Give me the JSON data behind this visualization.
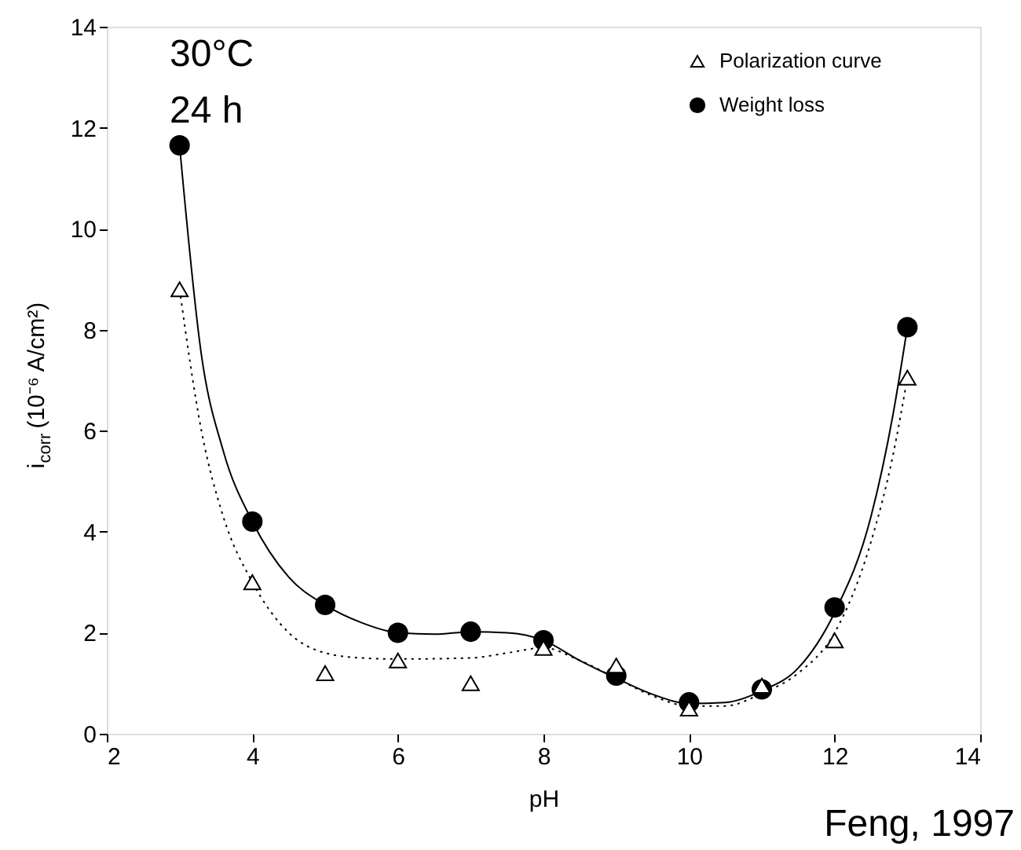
{
  "chart_data": {
    "type": "scatter",
    "xlabel": "pH",
    "ylabel": "i$_{corr}$  (10⁻⁶ A/cm²)",
    "xlim": [
      2,
      14
    ],
    "xticks": [
      2,
      4,
      6,
      8,
      10,
      12,
      14
    ],
    "ylim": [
      0,
      14
    ],
    "yticks": [
      0,
      2,
      4,
      6,
      8,
      10,
      12,
      14
    ],
    "x": [
      3,
      4,
      5,
      6,
      7,
      8,
      9,
      10,
      11,
      12,
      13
    ],
    "series": [
      {
        "name": "Polarization curve",
        "color": "#000000",
        "marker": "triangle",
        "values": [
          8.8,
          3.0,
          1.2,
          1.45,
          1.0,
          1.7,
          1.35,
          0.5,
          0.95,
          1.85,
          7.05
        ]
      },
      {
        "name": "Weight loss",
        "color": "#000000",
        "marker": "circle",
        "values": [
          11.65,
          4.2,
          2.55,
          2.0,
          2.02,
          1.85,
          1.15,
          0.62,
          0.88,
          2.5,
          8.05
        ]
      },
      {
        "type": "line",
        "color": "#000000",
        "line_style": "solid",
        "x": [
          3,
          3.3,
          3.6,
          4,
          4.5,
          5,
          5.5,
          6,
          6.5,
          7,
          7.5,
          8,
          8.5,
          9,
          9.5,
          10,
          10.5,
          11,
          11.5,
          12,
          12.5,
          12.8,
          13
        ],
        "values": [
          11.65,
          7.5,
          5.6,
          4.2,
          3.1,
          2.55,
          2.2,
          2.0,
          1.97,
          2.02,
          2.0,
          1.85,
          1.45,
          1.1,
          0.78,
          0.6,
          0.62,
          0.85,
          1.3,
          2.4,
          4.3,
          6.3,
          8.05
        ]
      },
      {
        "type": "line",
        "color": "#000000",
        "line_style": "dotted",
        "x": [
          3,
          3.3,
          3.6,
          4,
          4.5,
          5,
          5.5,
          6,
          7,
          7.5,
          8,
          8.5,
          9,
          9.5,
          10,
          10.5,
          11,
          11.5,
          12,
          12.5,
          12.8,
          13
        ],
        "values": [
          8.8,
          6.0,
          4.3,
          3.0,
          2.0,
          1.6,
          1.5,
          1.48,
          1.5,
          1.6,
          1.7,
          1.45,
          1.1,
          0.75,
          0.55,
          0.55,
          0.8,
          1.2,
          2.0,
          3.8,
          5.5,
          7.05
        ]
      }
    ],
    "annotations": [
      "30°C",
      "24 h",
      "Feng, 1997"
    ],
    "legend": "top right",
    "grid": false
  }
}
